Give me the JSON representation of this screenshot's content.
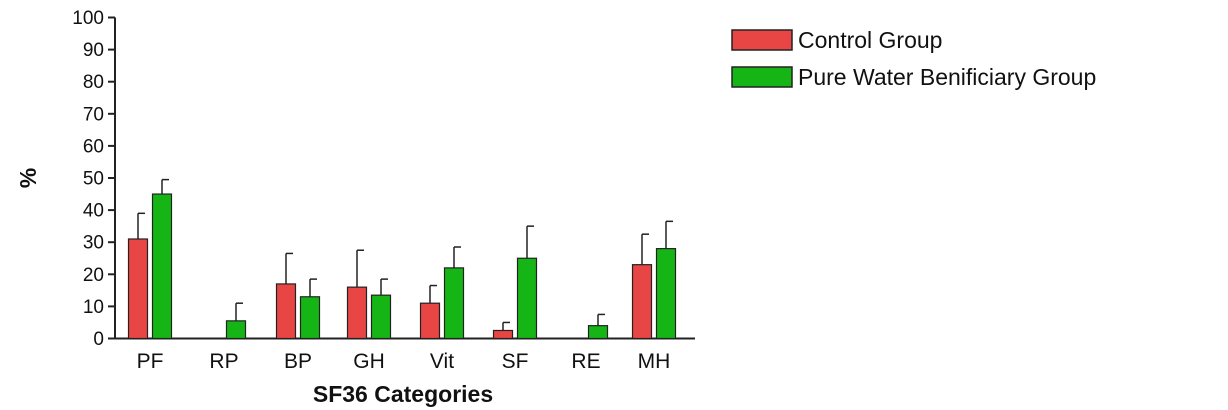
{
  "chart_data": {
    "type": "bar",
    "title": "",
    "xlabel": "SF36 Categories",
    "ylabel": "%",
    "ylim": [
      0,
      100
    ],
    "yticks": [
      0,
      10,
      20,
      30,
      40,
      50,
      60,
      70,
      80,
      90,
      100
    ],
    "categories": [
      "PF",
      "RP",
      "BP",
      "GH",
      "Vit",
      "SF",
      "RE",
      "MH"
    ],
    "series": [
      {
        "name": "Control Group",
        "color": "#e84545",
        "values": [
          31,
          0,
          17,
          16,
          11,
          2.5,
          0,
          23
        ],
        "error": [
          8,
          0,
          9.5,
          11.5,
          5.5,
          2.5,
          0,
          9.5
        ]
      },
      {
        "name": "Pure Water Benificiary Group",
        "color": "#16b516",
        "values": [
          45,
          5.5,
          13,
          13.5,
          22,
          25,
          4,
          28
        ],
        "error": [
          4.5,
          5.5,
          5.5,
          5,
          6.5,
          10,
          3.5,
          8.5
        ]
      }
    ],
    "legend_position": "top-right",
    "grid": false
  }
}
